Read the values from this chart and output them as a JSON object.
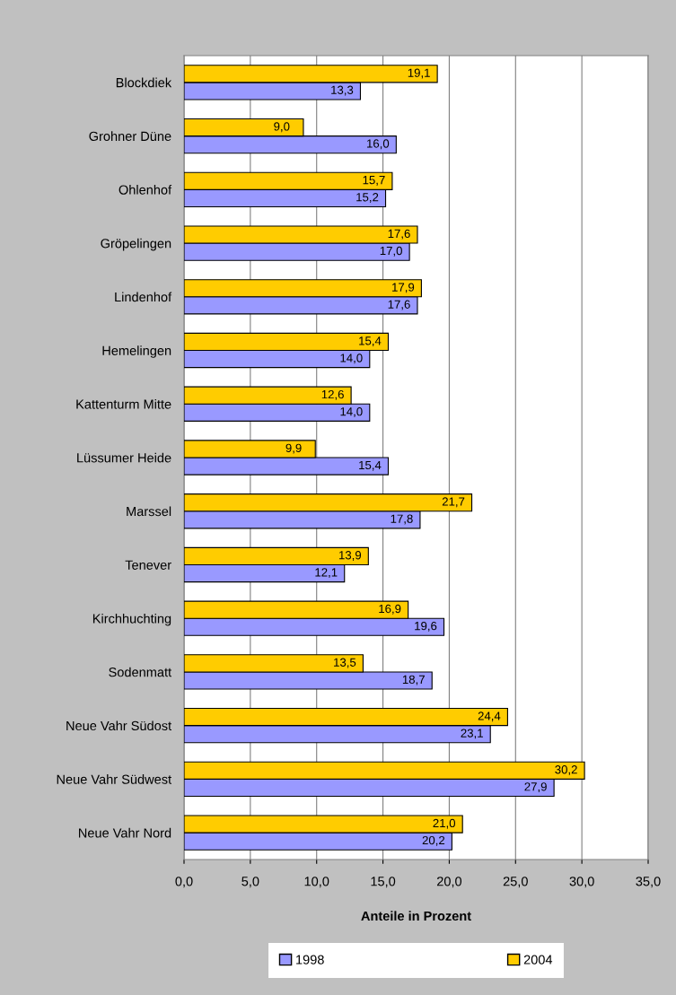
{
  "chart_data": {
    "type": "bar",
    "orientation": "horizontal",
    "xlabel": "Anteile in Prozent",
    "categories": [
      "Blockdiek",
      "Grohner Düne",
      "Ohlenhof",
      "Gröpelingen",
      "Lindenhof",
      "Hemelingen",
      "Kattenturm Mitte",
      "Lüssumer Heide",
      "Marssel",
      "Tenever",
      "Kirchhuchting",
      "Sodenmatt",
      "Neue Vahr Südost",
      "Neue Vahr Südwest",
      "Neue Vahr Nord"
    ],
    "series": [
      {
        "name": "1998",
        "color": "#9999ff",
        "values": [
          13.3,
          16.0,
          15.2,
          17.0,
          17.6,
          14.0,
          14.0,
          15.4,
          17.8,
          12.1,
          19.6,
          18.7,
          23.1,
          27.9,
          20.2
        ],
        "value_labels": [
          "13,3",
          "16,0",
          "15,2",
          "17,0",
          "17,6",
          "14,0",
          "14,0",
          "15,4",
          "17,8",
          "12,1",
          "19,6",
          "18,7",
          "23,1",
          "27,9",
          "20,2"
        ]
      },
      {
        "name": "2004",
        "color": "#ffcc00",
        "values": [
          19.1,
          9.0,
          15.7,
          17.6,
          17.9,
          15.4,
          12.6,
          9.9,
          21.7,
          13.9,
          16.9,
          13.5,
          24.4,
          30.2,
          21.0
        ],
        "value_labels": [
          "19,1",
          "9,0",
          "15,7",
          "17,6",
          "17,9",
          "15,4",
          "12,6",
          "9,9",
          "21,7",
          "13,9",
          "16,9",
          "13,5",
          "24,4",
          "30,2",
          "21,0"
        ]
      }
    ],
    "xlim": [
      0,
      35
    ],
    "xticks": [
      {
        "value": 0,
        "label": "0,0"
      },
      {
        "value": 5,
        "label": "5,0"
      },
      {
        "value": 10,
        "label": "10,0"
      },
      {
        "value": 15,
        "label": "15,0"
      },
      {
        "value": 20,
        "label": "20,0"
      },
      {
        "value": 25,
        "label": "25,0"
      },
      {
        "value": 30,
        "label": "30,0"
      },
      {
        "value": 35,
        "label": "35,0"
      }
    ],
    "grid": "x",
    "legend": "bottom"
  }
}
